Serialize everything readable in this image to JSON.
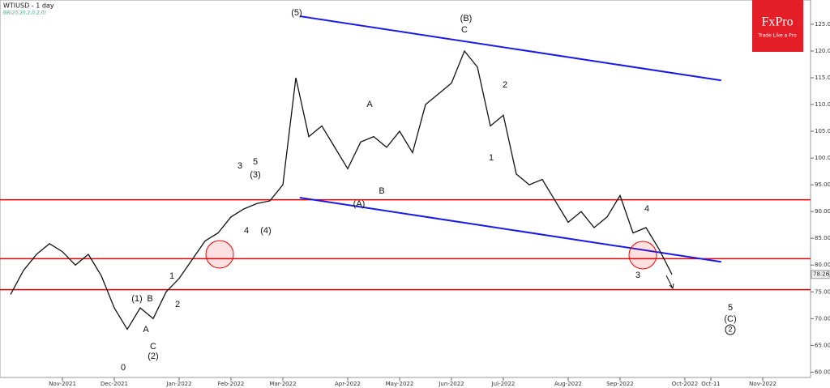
{
  "chart_data": {
    "type": "line",
    "title": "WTIUSD - 1 day",
    "subtitle": "BB(20,20,2,0,2,0)",
    "logo": {
      "brand": "FxPro",
      "tagline": "Trade Like a Pro"
    },
    "categories": [
      null,
      null,
      null,
      null,
      "Nov-2021",
      null,
      null,
      null,
      "Dec-2021",
      null,
      null,
      null,
      null,
      "Jan-2022",
      null,
      null,
      null,
      "Feb-2022",
      null,
      null,
      null,
      "Mar-2022",
      null,
      null,
      null,
      null,
      "Apr-2022",
      null,
      null,
      null,
      "May-2022",
      null,
      null,
      null,
      "Jun-2022",
      null,
      null,
      null,
      "Jul-2022",
      null,
      null,
      null,
      null,
      "Aug-2022",
      null,
      null,
      null,
      "Sep-2022",
      null,
      null,
      null,
      null,
      "Oct-2022",
      null,
      "Oct-11",
      null,
      null,
      null,
      "Nov-2022",
      null,
      null,
      null
    ],
    "series": [
      {
        "name": "WTIUSD",
        "color": "#111111",
        "values": [
          74.5,
          79,
          82,
          84,
          82.5,
          80,
          82,
          78,
          72,
          68,
          72,
          70,
          75,
          77.5,
          81,
          84.5,
          86,
          89,
          90.5,
          91.5,
          92,
          95,
          115,
          104,
          106,
          102,
          98,
          103,
          104,
          102,
          105,
          101,
          110,
          112,
          114,
          120,
          117,
          106,
          108,
          97,
          95,
          96,
          92,
          88,
          90,
          87,
          89,
          93,
          86,
          87,
          83,
          78.26,
          null,
          null,
          null,
          null,
          null,
          null,
          null,
          null,
          null,
          null
        ]
      }
    ],
    "last_value": 78.26,
    "levels": [
      92.2,
      81.2,
      75.4
    ],
    "level_color": "#e00000",
    "channel": [
      {
        "x": [
          22.3,
          54.8
        ],
        "values": [
          126.5,
          114.5
        ]
      },
      {
        "x": [
          22.3,
          54.8
        ],
        "values": [
          92.6,
          80.6
        ]
      }
    ],
    "channel_color": "#1a1ae6",
    "ylim": [
      59,
      126.5
    ],
    "yticks": [
      {
        "value": 60,
        "label": "60.00"
      },
      {
        "value": 65,
        "label": "65.00"
      },
      {
        "value": 70,
        "label": "70.00"
      },
      {
        "value": 75,
        "label": "75.00"
      },
      {
        "value": 80,
        "label": "80.00"
      },
      {
        "value": 85,
        "label": "85.00"
      },
      {
        "value": 90,
        "label": "90.00"
      },
      {
        "value": 95,
        "label": "95.00"
      },
      {
        "value": 100,
        "label": "100.00"
      },
      {
        "value": 105,
        "label": "105.00"
      },
      {
        "value": 110,
        "label": "110.00"
      },
      {
        "value": 115,
        "label": "115.00"
      },
      {
        "value": 120,
        "label": "120.00"
      },
      {
        "value": 125,
        "label": "125.00"
      }
    ],
    "annotations": [
      "(5)",
      "(B)",
      "C",
      "A",
      "B",
      "(A)",
      "1",
      "2",
      "3",
      "5",
      "(3)",
      "4",
      "(4)",
      "(1)",
      "B",
      "1",
      "A",
      "2",
      "C",
      "(2)",
      "0",
      "4",
      "3",
      "5",
      "(C)",
      "2"
    ]
  }
}
